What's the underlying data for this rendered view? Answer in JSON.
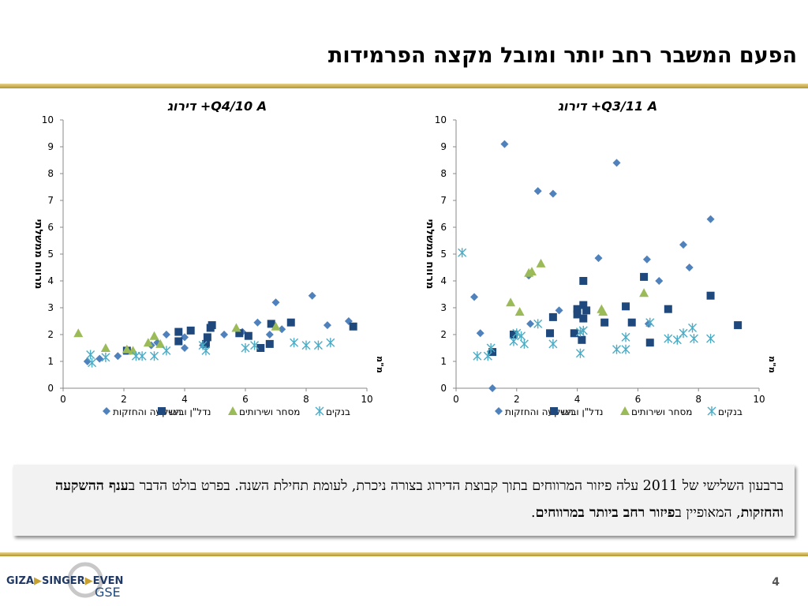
{
  "slide": {
    "title": "הפעם המשבר רחב יותר ומובל מקצה הפרמידות",
    "page_number": "4",
    "logo_text": "GIZA SINGER EVEN",
    "logo_sub": "GSE",
    "caption": {
      "part1": "ברבעון השלישי של 2011 עלה פיזור המרווחים בתוך קבוצת הדירוג בצורה ניכרת, לעומת תחילת השנה. בפרט בולט הדבר ב",
      "bold1": "ענף ההשקעה והחזקות",
      "part2": ", המאופיין ב",
      "bold2": "פיזור רחב ביותר במרווחים",
      "part3": "."
    }
  },
  "chart_data": [
    {
      "type": "scatter",
      "title": "Q4/10  A+ דירוג",
      "ylabel": "מרווח ממשלתי",
      "xlabel": "מ\"מ",
      "xlim": [
        0,
        10
      ],
      "ylim": [
        0,
        10
      ],
      "xticks": [
        "0",
        "2",
        "4",
        "6",
        "8",
        "10"
      ],
      "yticks": [
        "0",
        "1",
        "2",
        "3",
        "4",
        "5",
        "6",
        "7",
        "8",
        "9",
        "10"
      ],
      "series": [
        {
          "name": "השקעה והחזקות",
          "marker": "diamond",
          "color": "#4f81bd",
          "points": [
            [
              0.8,
              1.0
            ],
            [
              1.2,
              1.1
            ],
            [
              1.8,
              1.2
            ],
            [
              2.1,
              1.4
            ],
            [
              2.9,
              1.6
            ],
            [
              3.1,
              1.7
            ],
            [
              3.4,
              2.0
            ],
            [
              4.0,
              1.5
            ],
            [
              4.0,
              1.9
            ],
            [
              4.6,
              1.6
            ],
            [
              5.3,
              2.0
            ],
            [
              5.9,
              2.1
            ],
            [
              6.4,
              2.45
            ],
            [
              6.8,
              2.0
            ],
            [
              7.0,
              3.2
            ],
            [
              7.2,
              2.2
            ],
            [
              8.2,
              3.45
            ],
            [
              8.7,
              2.35
            ],
            [
              9.4,
              2.5
            ]
          ]
        },
        {
          "name": "נדל\"ן ובינוי",
          "marker": "square",
          "color": "#1f497d",
          "points": [
            [
              2.1,
              1.4
            ],
            [
              3.8,
              1.75
            ],
            [
              3.8,
              2.1
            ],
            [
              4.2,
              2.15
            ],
            [
              4.7,
              1.65
            ],
            [
              4.75,
              1.9
            ],
            [
              4.85,
              2.25
            ],
            [
              4.9,
              2.35
            ],
            [
              5.8,
              2.05
            ],
            [
              6.1,
              1.95
            ],
            [
              6.5,
              1.5
            ],
            [
              6.8,
              1.65
            ],
            [
              6.85,
              2.4
            ],
            [
              7.5,
              2.45
            ],
            [
              9.55,
              2.3
            ]
          ]
        },
        {
          "name": "מסחר ושירותים",
          "marker": "triangle",
          "color": "#9bbb59",
          "points": [
            [
              0.5,
              2.05
            ],
            [
              1.4,
              1.5
            ],
            [
              2.1,
              1.45
            ],
            [
              2.3,
              1.4
            ],
            [
              2.8,
              1.7
            ],
            [
              3.0,
              1.95
            ],
            [
              3.2,
              1.65
            ],
            [
              5.7,
              2.25
            ],
            [
              7.0,
              2.3
            ]
          ]
        },
        {
          "name": "בנקים",
          "marker": "star",
          "color": "#4bacc6",
          "points": [
            [
              0.9,
              1.25
            ],
            [
              0.95,
              0.95
            ],
            [
              1.4,
              1.15
            ],
            [
              2.4,
              1.2
            ],
            [
              2.6,
              1.2
            ],
            [
              3.0,
              1.2
            ],
            [
              3.4,
              1.4
            ],
            [
              4.6,
              1.6
            ],
            [
              4.7,
              1.4
            ],
            [
              6.0,
              1.5
            ],
            [
              6.3,
              1.6
            ],
            [
              7.6,
              1.7
            ],
            [
              8.0,
              1.6
            ],
            [
              8.4,
              1.6
            ],
            [
              8.8,
              1.7
            ]
          ]
        }
      ]
    },
    {
      "type": "scatter",
      "title": "Q3/11  A+ דירוג",
      "ylabel": "מרווח ממשלתי",
      "xlabel": "מ\"מ",
      "xlim": [
        0,
        10
      ],
      "ylim": [
        0,
        10
      ],
      "xticks": [
        "0",
        "2",
        "4",
        "6",
        "8",
        "10"
      ],
      "yticks": [
        "0",
        "1",
        "2",
        "3",
        "4",
        "5",
        "6",
        "7",
        "8",
        "9",
        "10"
      ],
      "series": [
        {
          "name": "השקעה והחזקות",
          "marker": "diamond",
          "color": "#4f81bd",
          "points": [
            [
              0.6,
              3.4
            ],
            [
              0.8,
              2.05
            ],
            [
              1.2,
              0.0
            ],
            [
              1.6,
              9.1
            ],
            [
              2.4,
              4.2
            ],
            [
              2.45,
              2.4
            ],
            [
              2.7,
              7.35
            ],
            [
              3.2,
              7.25
            ],
            [
              3.4,
              2.9
            ],
            [
              4.7,
              4.85
            ],
            [
              5.3,
              8.4
            ],
            [
              6.3,
              4.8
            ],
            [
              6.7,
              4.0
            ],
            [
              7.5,
              5.35
            ],
            [
              7.7,
              4.5
            ],
            [
              8.4,
              6.3
            ],
            [
              6.35,
              2.4
            ]
          ]
        },
        {
          "name": "נדל\"ן ובינוי",
          "marker": "square",
          "color": "#1f497d",
          "points": [
            [
              1.2,
              1.35
            ],
            [
              1.9,
              2.0
            ],
            [
              3.1,
              2.05
            ],
            [
              3.2,
              2.65
            ],
            [
              3.9,
              2.05
            ],
            [
              4.0,
              2.95
            ],
            [
              4.0,
              2.75
            ],
            [
              4.15,
              1.8
            ],
            [
              4.2,
              2.6
            ],
            [
              4.2,
              3.1
            ],
            [
              4.3,
              2.9
            ],
            [
              4.2,
              4.0
            ],
            [
              4.9,
              2.45
            ],
            [
              5.6,
              3.05
            ],
            [
              5.8,
              2.45
            ],
            [
              6.2,
              4.15
            ],
            [
              6.4,
              1.7
            ],
            [
              7.0,
              2.95
            ],
            [
              8.4,
              3.45
            ],
            [
              9.3,
              2.35
            ]
          ]
        },
        {
          "name": "מסחר ושירותים",
          "marker": "triangle",
          "color": "#9bbb59",
          "points": [
            [
              1.8,
              3.2
            ],
            [
              2.1,
              2.85
            ],
            [
              2.4,
              4.3
            ],
            [
              2.5,
              4.35
            ],
            [
              2.8,
              4.65
            ],
            [
              4.8,
              2.95
            ],
            [
              4.85,
              2.85
            ],
            [
              6.2,
              3.55
            ]
          ]
        },
        {
          "name": "בנקים",
          "marker": "star",
          "color": "#4bacc6",
          "points": [
            [
              0.2,
              5.05
            ],
            [
              0.7,
              1.2
            ],
            [
              1.05,
              1.2
            ],
            [
              1.15,
              1.5
            ],
            [
              1.9,
              1.75
            ],
            [
              2.0,
              2.05
            ],
            [
              2.15,
              1.95
            ],
            [
              2.25,
              1.65
            ],
            [
              2.7,
              2.4
            ],
            [
              3.2,
              1.65
            ],
            [
              4.1,
              1.3
            ],
            [
              4.1,
              2.1
            ],
            [
              4.2,
              2.15
            ],
            [
              5.3,
              1.45
            ],
            [
              5.6,
              1.45
            ],
            [
              5.6,
              1.9
            ],
            [
              6.4,
              2.45
            ],
            [
              7.0,
              1.85
            ],
            [
              7.3,
              1.8
            ],
            [
              7.5,
              2.05
            ],
            [
              7.8,
              2.25
            ],
            [
              7.85,
              1.85
            ],
            [
              8.4,
              1.85
            ]
          ]
        }
      ]
    }
  ]
}
